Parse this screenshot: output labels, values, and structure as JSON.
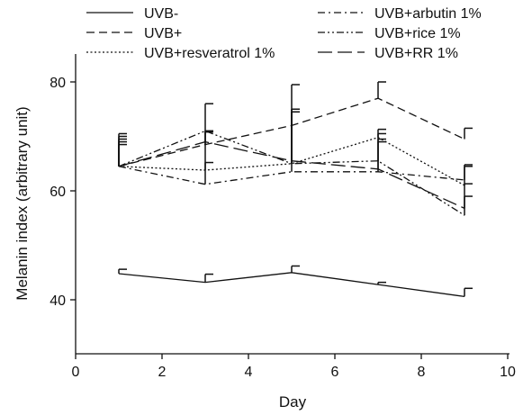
{
  "chart_data": {
    "type": "line",
    "xlabel": "Day",
    "ylabel": "Melanin index (arbitrary unit)",
    "xlim": [
      0,
      10
    ],
    "ylim": [
      30,
      80
    ],
    "xticks": [
      0,
      2,
      4,
      6,
      8,
      10
    ],
    "yticks": [
      40,
      60,
      80
    ],
    "x": [
      1,
      3,
      5,
      7,
      9
    ],
    "grid": false,
    "legend_position": "top",
    "series": [
      {
        "name": "UVB-",
        "dash": "solid",
        "values": [
          44.8,
          43.2,
          45.0,
          42.8,
          40.6
        ],
        "errors": [
          0.8,
          1.5,
          1.2,
          0.4,
          1.5
        ]
      },
      {
        "name": "UVB+",
        "dash": "dashed",
        "values": [
          64.5,
          68.5,
          72.0,
          77.0,
          69.5
        ],
        "errors": [
          5.5,
          2.5,
          7.5,
          3.0,
          2.0
        ]
      },
      {
        "name": "UVB+resveratrol 1%",
        "dash": "dotted",
        "values": [
          64.5,
          63.8,
          65.0,
          69.8,
          61.0
        ],
        "errors": [
          4.0,
          7.0,
          10.0,
          1.5,
          3.8
        ]
      },
      {
        "name": "UVB+arbutin 1%",
        "dash": "dashdot",
        "values": [
          64.5,
          61.2,
          63.5,
          63.5,
          62.0
        ],
        "errors": [
          4.5,
          4.0,
          11.0,
          6.0,
          2.5
        ]
      },
      {
        "name": "UVB+rice 1%",
        "dash": "dashdotdot",
        "values": [
          64.5,
          71.0,
          65.0,
          65.5,
          55.5
        ],
        "errors": [
          5.0,
          5.0,
          10.0,
          5.0,
          3.5
        ]
      },
      {
        "name": "UVB+RR 1%",
        "dash": "longdash",
        "values": [
          64.5,
          69.0,
          65.5,
          64.0,
          56.8
        ],
        "errors": [
          6.0,
          2.0,
          9.0,
          5.0,
          4.5
        ]
      }
    ]
  }
}
